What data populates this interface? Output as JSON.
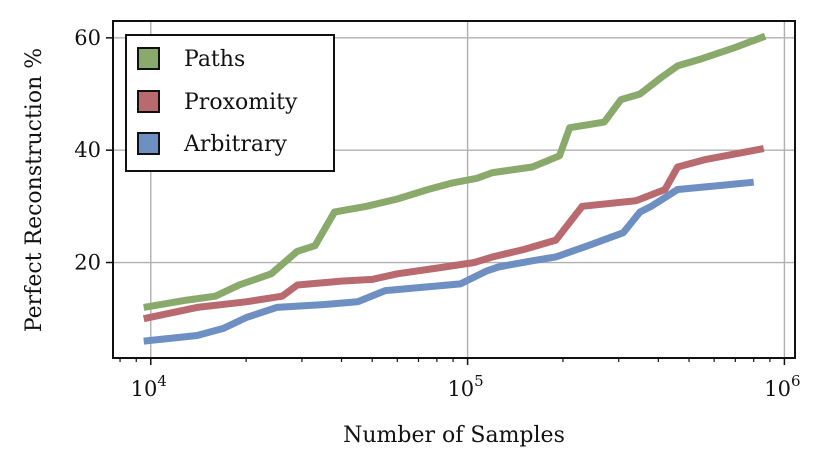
{
  "chart_data": {
    "type": "line",
    "xlabel": "Number of Samples",
    "ylabel": "Perfect Reconstruction %",
    "xscale": "log",
    "xlim": [
      7600,
      1080000
    ],
    "ylim": [
      3,
      63
    ],
    "grid": true,
    "legend_position": "top-left",
    "x_ticks": [
      {
        "value": 10000,
        "base": "10",
        "exp": "4"
      },
      {
        "value": 100000,
        "base": "10",
        "exp": "5"
      },
      {
        "value": 1000000,
        "base": "10",
        "exp": "6"
      }
    ],
    "y_ticks": [
      20,
      40,
      60
    ],
    "series": [
      {
        "name": "Paths",
        "color": "#8aaa6c",
        "points": [
          [
            9500,
            12
          ],
          [
            13000,
            13.3
          ],
          [
            16000,
            14
          ],
          [
            19000,
            16
          ],
          [
            24000,
            18
          ],
          [
            29000,
            22
          ],
          [
            33000,
            23
          ],
          [
            38000,
            29
          ],
          [
            48000,
            30
          ],
          [
            60000,
            31.3
          ],
          [
            75000,
            33
          ],
          [
            90000,
            34.2
          ],
          [
            107000,
            35
          ],
          [
            120000,
            36
          ],
          [
            160000,
            37
          ],
          [
            195000,
            39
          ],
          [
            210000,
            44
          ],
          [
            270000,
            45
          ],
          [
            305000,
            49
          ],
          [
            350000,
            50
          ],
          [
            410000,
            53
          ],
          [
            460000,
            55
          ],
          [
            550000,
            56.3
          ],
          [
            700000,
            58.3
          ],
          [
            870000,
            60.3
          ]
        ]
      },
      {
        "name": "Proxomity",
        "color": "#b86a6e",
        "points": [
          [
            9500,
            10
          ],
          [
            14000,
            12
          ],
          [
            20000,
            13
          ],
          [
            26000,
            14
          ],
          [
            29000,
            16
          ],
          [
            40000,
            16.7
          ],
          [
            50000,
            17
          ],
          [
            60000,
            18
          ],
          [
            80000,
            19
          ],
          [
            105000,
            20
          ],
          [
            120000,
            21
          ],
          [
            150000,
            22.3
          ],
          [
            190000,
            24
          ],
          [
            230000,
            30
          ],
          [
            340000,
            31
          ],
          [
            420000,
            33
          ],
          [
            460000,
            37
          ],
          [
            560000,
            38.3
          ],
          [
            860000,
            40.3
          ]
        ]
      },
      {
        "name": "Arbitrary",
        "color": "#6e8fc2",
        "points": [
          [
            9500,
            6
          ],
          [
            14000,
            7
          ],
          [
            17000,
            8.3
          ],
          [
            20000,
            10.2
          ],
          [
            25000,
            12
          ],
          [
            35000,
            12.5
          ],
          [
            45000,
            13
          ],
          [
            55000,
            15
          ],
          [
            95000,
            16.2
          ],
          [
            115000,
            18.5
          ],
          [
            125000,
            19.2
          ],
          [
            160000,
            20.3
          ],
          [
            190000,
            21
          ],
          [
            240000,
            23
          ],
          [
            310000,
            25.3
          ],
          [
            350000,
            29
          ],
          [
            380000,
            30
          ],
          [
            460000,
            33
          ],
          [
            620000,
            33.7
          ],
          [
            800000,
            34.3
          ]
        ]
      }
    ]
  }
}
